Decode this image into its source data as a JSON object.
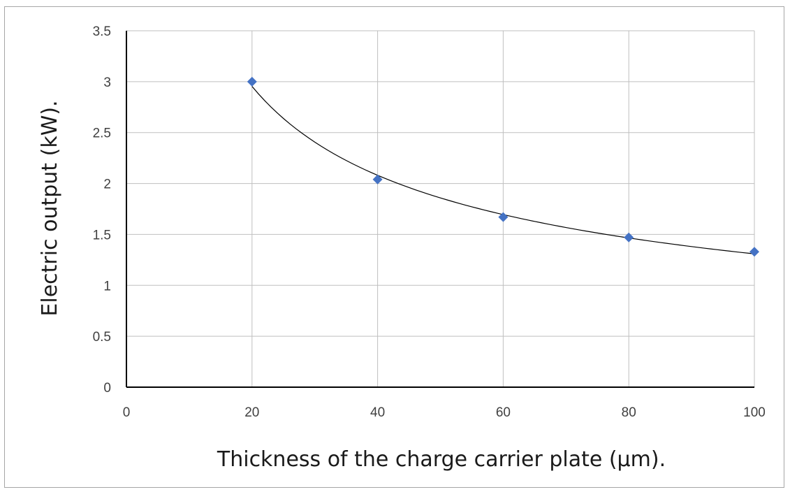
{
  "chart_data": {
    "type": "scatter",
    "xlabel": "Thickness of the charge carrier plate (µm).",
    "ylabel": "Electric output (kW).",
    "xlim": [
      0,
      100
    ],
    "ylim": [
      0,
      3.5
    ],
    "x_ticks": [
      0,
      20,
      40,
      60,
      80,
      100
    ],
    "y_ticks": [
      0,
      0.5,
      1,
      1.5,
      2,
      2.5,
      3,
      3.5
    ],
    "x_tick_labels": [
      "0",
      "20",
      "40",
      "60",
      "80",
      "100"
    ],
    "y_tick_labels": [
      "0",
      "0.5",
      "1",
      "1.5",
      "2",
      "2.5",
      "3",
      "3.5"
    ],
    "grid": true,
    "series": [
      {
        "marker": "diamond",
        "color": "#4472c4",
        "x": [
          20,
          40,
          60,
          80,
          100
        ],
        "y": [
          3.0,
          2.04,
          1.67,
          1.47,
          1.33
        ]
      }
    ],
    "trendline": {
      "kind": "power",
      "color": "#000000",
      "x_range": [
        20,
        100
      ]
    }
  }
}
